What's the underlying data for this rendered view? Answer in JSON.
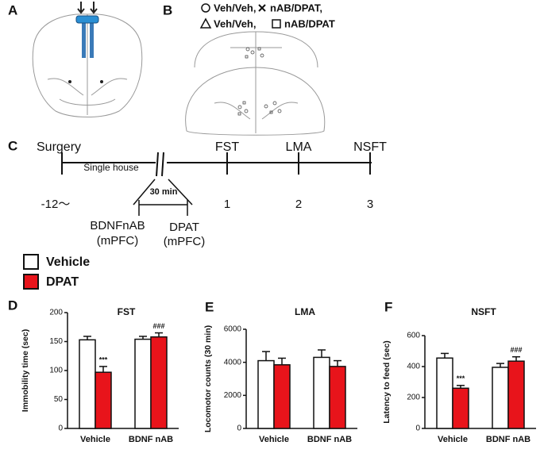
{
  "panel_a": {
    "label": "A"
  },
  "panel_b": {
    "label": "B",
    "legend": [
      {
        "symbol": "circle",
        "label": "Veh/Veh,"
      },
      {
        "symbol": "cross",
        "label": "nAB/DPAT,"
      },
      {
        "symbol": "triangle",
        "label": "Veh/Veh,"
      },
      {
        "symbol": "square",
        "label": "nAB/DPAT"
      }
    ]
  },
  "panel_c": {
    "label": "C",
    "events": [
      {
        "label": "Surgery",
        "tick": "-12〜"
      },
      {
        "label": "FST",
        "tick": "1"
      },
      {
        "label": "LMA",
        "tick": "2"
      },
      {
        "label": "NSFT",
        "tick": "3"
      }
    ],
    "single_house": "Single house",
    "interval": "30 min",
    "injections": [
      {
        "name": "BDNFnAB",
        "site": "(mPFC)"
      },
      {
        "name": "DPAT",
        "site": "(mPFC)"
      }
    ]
  },
  "legend": [
    {
      "name": "Vehicle",
      "color": "#ffffff"
    },
    {
      "name": "DPAT",
      "color": "#e8141b"
    }
  ],
  "chart_data": [
    {
      "type": "bar",
      "label": "D",
      "title": "FST",
      "y_label": "Immobility time (sec)",
      "categories": [
        "Vehicle",
        "BDNF nAB"
      ],
      "ylim": [
        0,
        200
      ],
      "yticks": [
        0,
        50,
        100,
        150,
        200
      ],
      "series": [
        {
          "color": "#ffffff",
          "values": [
            153,
            154
          ],
          "errors": [
            6,
            5
          ]
        },
        {
          "color": "#e8141b",
          "values": [
            97,
            158
          ],
          "errors": [
            10,
            7
          ],
          "annotations": [
            "***",
            "###"
          ]
        }
      ]
    },
    {
      "type": "bar",
      "label": "E",
      "title": "LMA",
      "y_label": "Locomotor counts (30 min)",
      "categories": [
        "Vehicle",
        "BDNF nAB"
      ],
      "ylim": [
        0,
        6000
      ],
      "yticks": [
        0,
        2000,
        4000,
        6000
      ],
      "series": [
        {
          "color": "#ffffff",
          "values": [
            4100,
            4300
          ],
          "errors": [
            550,
            450
          ]
        },
        {
          "color": "#e8141b",
          "values": [
            3850,
            3750
          ],
          "errors": [
            400,
            350
          ]
        }
      ]
    },
    {
      "type": "bar",
      "label": "F",
      "title": "NSFT",
      "y_label": "Latency to feed (sec)",
      "categories": [
        "Vehicle",
        "BDNF nAB"
      ],
      "ylim": [
        0,
        600
      ],
      "yticks": [
        0,
        200,
        400,
        600
      ],
      "series": [
        {
          "color": "#ffffff",
          "values": [
            455,
            395
          ],
          "errors": [
            30,
            25
          ]
        },
        {
          "color": "#e8141b",
          "values": [
            260,
            435
          ],
          "errors": [
            18,
            28
          ],
          "annotations": [
            "***",
            "###"
          ]
        }
      ]
    }
  ]
}
